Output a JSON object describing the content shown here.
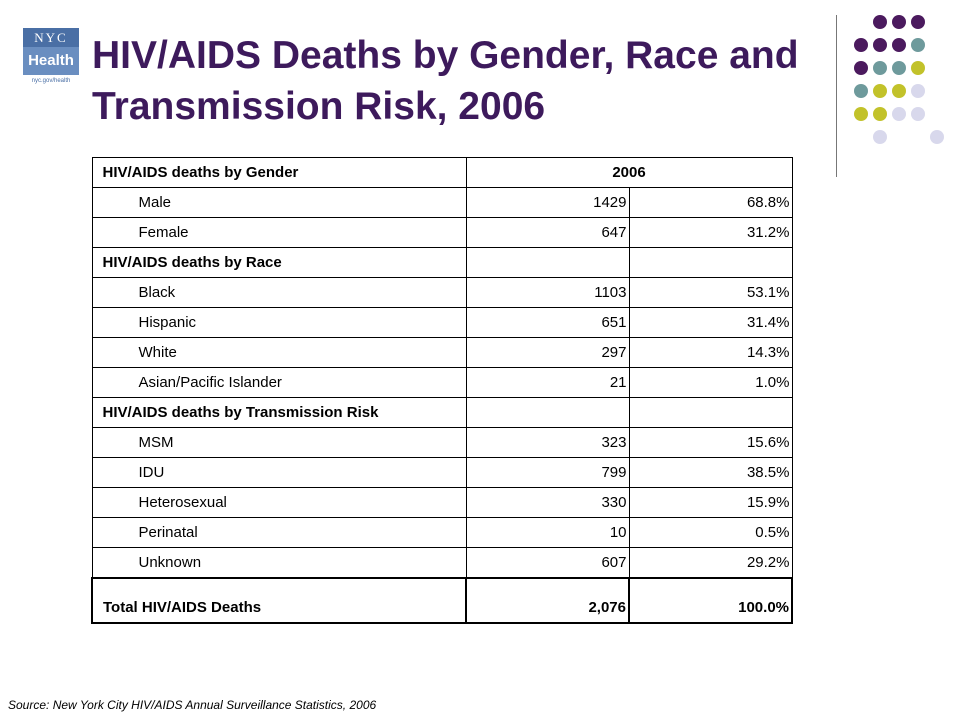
{
  "logo": {
    "top": "NYC",
    "middle": "Health",
    "bottom": "nyc.gov/health"
  },
  "title": "HIV/AIDS Deaths by Gender, Race and Transmission Risk, 2006",
  "table": {
    "year_header": "2006",
    "rows": [
      {
        "type": "section",
        "label": "HIV/AIDS deaths by Gender",
        "count": "",
        "percent": ""
      },
      {
        "type": "item",
        "label": "Male",
        "count": "1429",
        "percent": "68.8%"
      },
      {
        "type": "item",
        "label": "Female",
        "count": "647",
        "percent": "31.2%"
      },
      {
        "type": "section",
        "label": "HIV/AIDS deaths by Race",
        "count": "",
        "percent": ""
      },
      {
        "type": "item",
        "label": "Black",
        "count": "1103",
        "percent": "53.1%"
      },
      {
        "type": "item",
        "label": "Hispanic",
        "count": "651",
        "percent": "31.4%"
      },
      {
        "type": "item",
        "label": "White",
        "count": "297",
        "percent": "14.3%"
      },
      {
        "type": "item",
        "label": "Asian/Pacific Islander",
        "count": "21",
        "percent": "1.0%"
      },
      {
        "type": "section",
        "label": "HIV/AIDS deaths by Transmission Risk",
        "count": "",
        "percent": ""
      },
      {
        "type": "item",
        "label": "MSM",
        "count": "323",
        "percent": "15.6%"
      },
      {
        "type": "item",
        "label": "IDU",
        "count": "799",
        "percent": "38.5%"
      },
      {
        "type": "item",
        "label": "Heterosexual",
        "count": "330",
        "percent": "15.9%"
      },
      {
        "type": "item",
        "label": "Perinatal",
        "count": "10",
        "percent": "0.5%"
      },
      {
        "type": "item",
        "label": "Unknown",
        "count": "607",
        "percent": "29.2%"
      }
    ],
    "total": {
      "label": "Total HIV/AIDS Deaths",
      "count": "2,076",
      "percent": "100.0%"
    }
  },
  "source": "Source: New York City HIV/AIDS Annual Surveillance Statistics, 2006",
  "colors": {
    "title": "#3d1a5c",
    "dot_purple": "#4b1a5e",
    "dot_teal": "#6e9a9c",
    "dot_olive": "#c2c22a",
    "dot_lavender": "#d8d8ec"
  }
}
